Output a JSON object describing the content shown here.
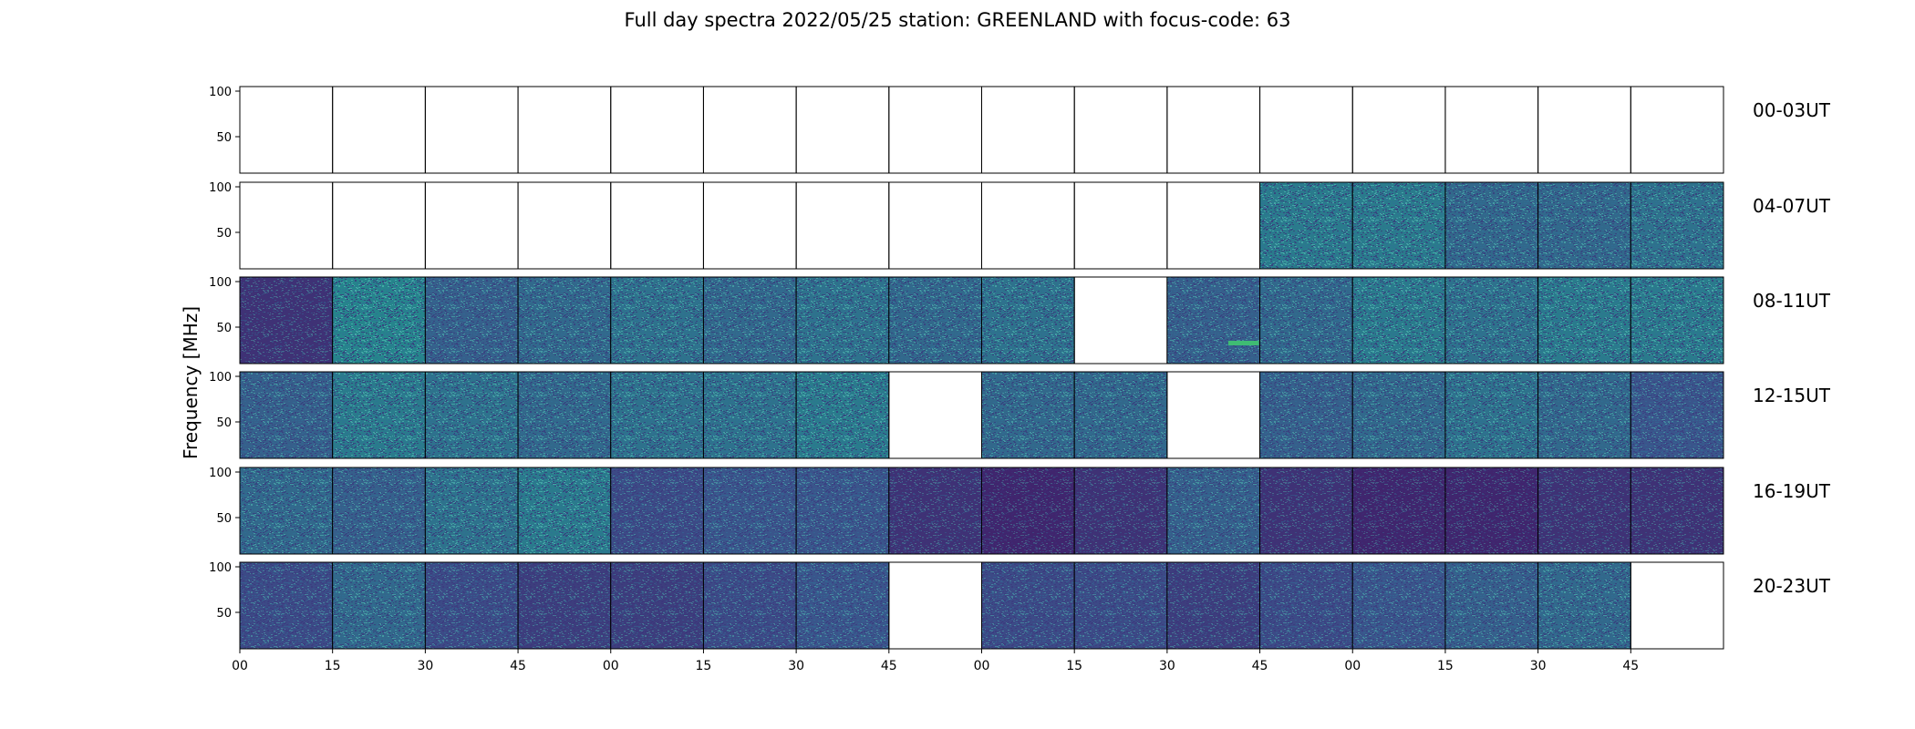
{
  "chart_data": {
    "type": "heatmap",
    "title": "Full day spectra 2022/05/25 station: GREENLAND with focus-code: 63",
    "ylabel": "Frequency [MHz]",
    "xlabel": "",
    "ylim": [
      10,
      105
    ],
    "y_ticks": [
      50,
      100
    ],
    "x_tick_labels": [
      "00",
      "15",
      "30",
      "45",
      "00",
      "15",
      "30",
      "45",
      "00",
      "15",
      "30",
      "45",
      "00",
      "15",
      "30",
      "45"
    ],
    "colormap": [
      "#440154",
      "#3b528b",
      "#21918c",
      "#5ec962"
    ],
    "row_labels": [
      "00-03UT",
      "04-07UT",
      "08-11UT",
      "12-15UT",
      "16-19UT",
      "20-23UT"
    ],
    "segments_per_row": 16,
    "mean_intensity": [
      [
        null,
        null,
        null,
        null,
        null,
        null,
        null,
        null,
        null,
        null,
        null,
        null,
        null,
        null,
        null,
        null
      ],
      [
        null,
        null,
        null,
        null,
        null,
        null,
        null,
        null,
        null,
        null,
        null,
        0.55,
        0.55,
        0.45,
        0.45,
        0.5
      ],
      [
        0.2,
        0.6,
        0.4,
        0.45,
        0.5,
        0.45,
        0.5,
        0.45,
        0.5,
        null,
        0.4,
        0.45,
        0.55,
        0.5,
        0.55,
        0.55
      ],
      [
        0.4,
        0.55,
        0.5,
        0.45,
        0.5,
        0.5,
        0.55,
        null,
        0.45,
        0.45,
        null,
        0.4,
        0.45,
        0.5,
        0.45,
        0.35
      ],
      [
        0.45,
        0.4,
        0.5,
        0.55,
        0.3,
        0.35,
        0.35,
        0.2,
        0.15,
        0.2,
        0.4,
        0.2,
        0.15,
        0.15,
        0.2,
        0.2
      ],
      [
        0.3,
        0.45,
        0.3,
        0.25,
        0.25,
        0.3,
        0.35,
        null,
        0.3,
        0.3,
        0.25,
        0.3,
        0.35,
        0.4,
        0.45,
        null
      ]
    ],
    "annotations": [
      {
        "row": "08-11UT",
        "segment": 10,
        "frequency_mhz": 33,
        "note": "narrowband"
      }
    ]
  }
}
